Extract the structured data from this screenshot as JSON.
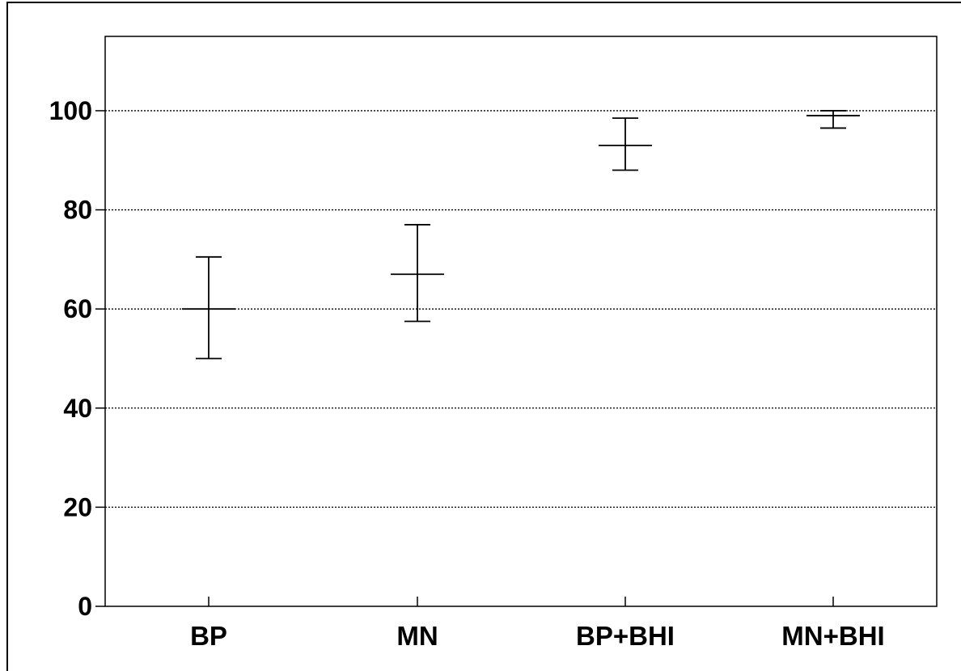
{
  "chart_data": {
    "type": "errorbar",
    "title": "",
    "xlabel": "",
    "ylabel": "",
    "categories": [
      "BP",
      "MN",
      "BP+BHI",
      "MN+BHI"
    ],
    "series": [
      {
        "center": [
          60,
          67,
          93,
          99
        ],
        "upper": [
          70.5,
          77,
          98.5,
          100
        ],
        "lower": [
          50,
          57.5,
          88,
          96.5
        ]
      }
    ],
    "ylim": [
      0,
      115
    ],
    "yticks": [
      0,
      20,
      40,
      60,
      80,
      100
    ],
    "ytick_labels": [
      "0",
      "20",
      "40",
      "60",
      "80",
      "100"
    ],
    "grid": true,
    "legend": "none",
    "colors": {
      "marks": "#000000",
      "grid": "#000000",
      "background": "#ffffff"
    }
  }
}
